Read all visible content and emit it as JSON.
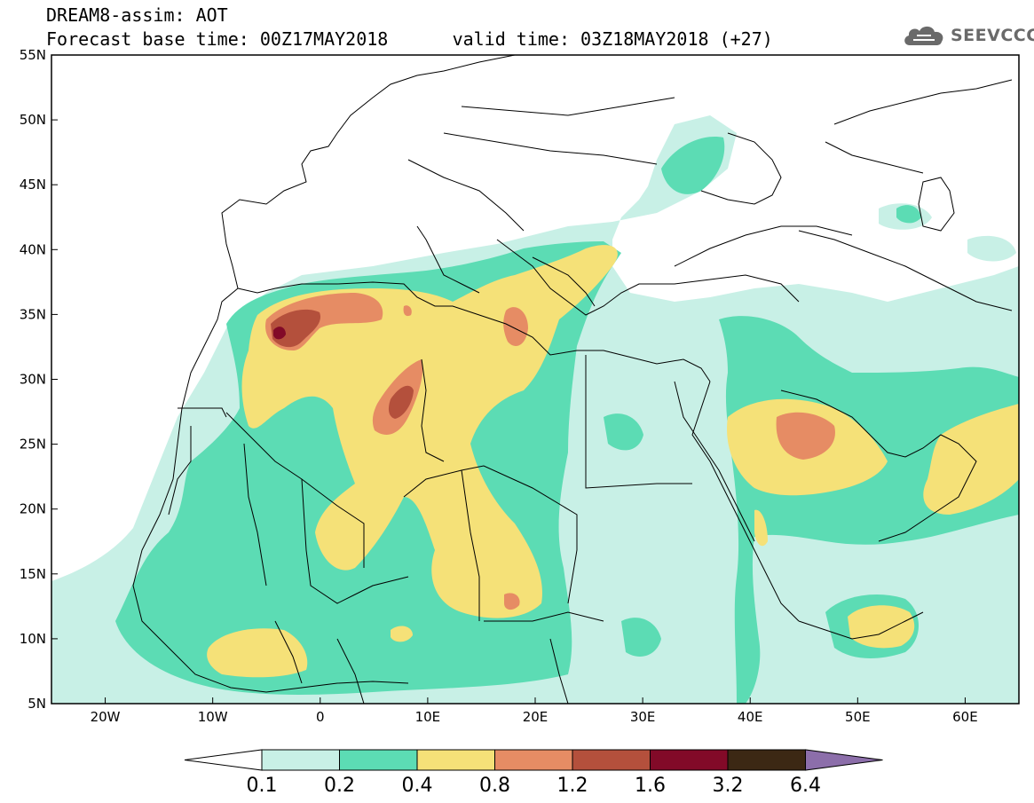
{
  "header": {
    "model_line": "DREAM8-assim: AOT",
    "base_time_line": "Forecast base time: 00Z17MAY2018",
    "valid_time_line": "valid time: 03Z18MAY2018 (+27)"
  },
  "logo": {
    "text": "SEEVCCC",
    "icon": "cloud-icon"
  },
  "map": {
    "lat_labels": [
      "55N",
      "50N",
      "45N",
      "40N",
      "35N",
      "30N",
      "25N",
      "20N",
      "15N",
      "10N",
      "5N"
    ],
    "lon_labels": [
      "20W",
      "10W",
      "0",
      "10E",
      "20E",
      "30E",
      "40E",
      "50E",
      "60E"
    ],
    "lat_values": [
      55,
      50,
      45,
      40,
      35,
      30,
      25,
      20,
      15,
      10,
      5
    ],
    "lon_values": [
      -20,
      -10,
      0,
      10,
      20,
      30,
      40,
      50,
      60
    ],
    "extent": {
      "lon_min": -25,
      "lon_max": 65,
      "lat_min": 5,
      "lat_max": 55
    }
  },
  "colorbar": {
    "labels": [
      "0.1",
      "0.2",
      "0.4",
      "0.8",
      "1.2",
      "1.6",
      "3.2",
      "6.4"
    ],
    "colors": [
      "#ffffff",
      "#c8f0e6",
      "#5cdcb4",
      "#f5e178",
      "#e68c64",
      "#b4503c",
      "#820a28",
      "#3c2814",
      "#8c6eaa"
    ]
  },
  "colors": {
    "level_01": "#c8f0e6",
    "level_02": "#5cdcb4",
    "level_04": "#f5e178",
    "level_08": "#e68c64",
    "level_12": "#b4503c",
    "level_16": "#820a28"
  }
}
